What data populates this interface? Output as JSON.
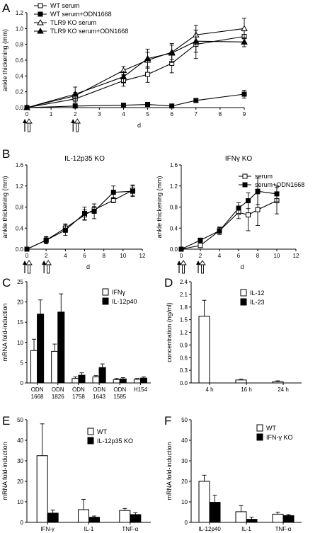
{
  "chart_data": [
    {
      "panel": "A",
      "type": "line",
      "title": "",
      "xlabel": "d",
      "ylabel": "ankle thickening (mm)",
      "xlim": [
        0,
        9
      ],
      "ylim": [
        0,
        1.2
      ],
      "xticks": [
        0,
        1,
        2,
        3,
        4,
        5,
        6,
        7,
        8,
        9
      ],
      "yticks": [
        0.0,
        0.2,
        0.4,
        0.6,
        0.8,
        1.0,
        1.2
      ],
      "injection_days": [
        0,
        2
      ],
      "series": [
        {
          "name": "WT serum",
          "marker": "open-square",
          "x": [
            0,
            2,
            4,
            5,
            6,
            7,
            9
          ],
          "y": [
            0,
            0.11,
            0.34,
            0.42,
            0.56,
            0.8,
            0.9
          ],
          "err": [
            0,
            0.05,
            0.07,
            0.1,
            0.12,
            0.18,
            0.07
          ]
        },
        {
          "name": "WT serum+ODN1668",
          "marker": "filled-square",
          "x": [
            0,
            2,
            4,
            5,
            6,
            7,
            9
          ],
          "y": [
            0,
            0.02,
            0.03,
            0.04,
            0.02,
            0.09,
            0.17
          ],
          "err": [
            0,
            0.01,
            0.01,
            0.01,
            0.01,
            0.01,
            0.05
          ]
        },
        {
          "name": "TLR9 KO serum",
          "marker": "open-triangle",
          "x": [
            0,
            2,
            4,
            5,
            6,
            7,
            9
          ],
          "y": [
            0,
            0.15,
            0.47,
            0.6,
            0.7,
            0.92,
            1.0
          ],
          "err": [
            0,
            0.04,
            0.05,
            0.1,
            0.09,
            0.12,
            0.13
          ]
        },
        {
          "name": "TLR9 KO serum+ODN1668",
          "marker": "filled-triangle",
          "x": [
            0,
            2,
            4,
            5,
            6,
            7,
            9
          ],
          "y": [
            0,
            0.17,
            0.39,
            0.62,
            0.69,
            0.84,
            0.83
          ],
          "err": [
            0,
            0.09,
            0.07,
            0.12,
            0.12,
            0.14,
            0.06
          ]
        }
      ]
    },
    {
      "panel": "B",
      "type": "line",
      "title": "IL-12p35 KO",
      "xlabel": "d",
      "ylabel": "ankle thickening (mm)",
      "xlim": [
        0,
        12
      ],
      "ylim": [
        0,
        1.6
      ],
      "xticks": [
        0,
        2,
        4,
        6,
        8,
        10,
        12
      ],
      "yticks": [
        0.0,
        0.4,
        0.8,
        1.2,
        1.6
      ],
      "injection_days": [
        0,
        2
      ],
      "series": [
        {
          "name": "serum",
          "marker": "open-square",
          "x": [
            0,
            2,
            4,
            6,
            7,
            9,
            11
          ],
          "y": [
            0,
            0.17,
            0.4,
            0.65,
            0.75,
            0.93,
            1.12
          ],
          "err": [
            0,
            0.06,
            0.08,
            0.1,
            0.06,
            0.05,
            0.1
          ]
        },
        {
          "name": "serum+ODN1668",
          "marker": "filled-square",
          "x": [
            0,
            2,
            4,
            6,
            7,
            9,
            11
          ],
          "y": [
            0,
            0.17,
            0.36,
            0.68,
            0.72,
            1.08,
            1.1
          ],
          "err": [
            0,
            0.07,
            0.1,
            0.12,
            0.14,
            0.12,
            0.1
          ]
        }
      ]
    },
    {
      "panel": "B",
      "type": "line",
      "title": "IFNγ KO",
      "xlabel": "d",
      "ylabel": "ankle thickening (mm)",
      "xlim": [
        0,
        12
      ],
      "ylim": [
        0,
        1.6
      ],
      "xticks": [
        0,
        2,
        4,
        6,
        8,
        10,
        12
      ],
      "yticks": [
        0.0,
        0.4,
        0.8,
        1.2,
        1.6
      ],
      "injection_days": [
        0,
        2
      ],
      "series": [
        {
          "name": "serum",
          "marker": "open-square",
          "x": [
            0,
            2,
            4,
            6,
            7,
            8,
            10
          ],
          "y": [
            0,
            0.07,
            0.35,
            0.7,
            0.65,
            0.75,
            0.92
          ],
          "err": [
            0,
            0.04,
            0.06,
            0.12,
            0.3,
            0.3,
            0.25
          ]
        },
        {
          "name": "serum+ODN1668",
          "marker": "filled-square",
          "x": [
            0,
            2,
            4,
            6,
            7,
            8,
            10
          ],
          "y": [
            0,
            0.17,
            0.35,
            0.78,
            0.92,
            1.1,
            1.05
          ],
          "err": [
            0,
            0.04,
            0.07,
            0.1,
            0.15,
            0.25,
            0.15
          ]
        }
      ]
    },
    {
      "panel": "C",
      "type": "bar",
      "title": "",
      "ylabel": "mRNA fold-induction",
      "ylim": [
        0,
        25
      ],
      "yticks": [
        0,
        5,
        10,
        15,
        20,
        25
      ],
      "categories": [
        "ODN\n1668",
        "ODN\n1826",
        "ODN\n1758",
        "ODN\n1643",
        "ODN\n1585",
        "H154"
      ],
      "series": [
        {
          "name": "IFNγ",
          "fill": "#ffffff",
          "values": [
            8.0,
            7.8,
            1.1,
            1.5,
            0.8,
            0.9
          ],
          "err": [
            2.8,
            1.8,
            0.4,
            0.3,
            0.3,
            0.2
          ]
        },
        {
          "name": "IL-12p40",
          "fill": "#000000",
          "values": [
            17.0,
            17.5,
            1.9,
            3.8,
            1.0,
            1.2
          ],
          "err": [
            3.5,
            4.5,
            0.6,
            0.9,
            0.3,
            0.3
          ]
        }
      ]
    },
    {
      "panel": "D",
      "type": "bar",
      "title": "",
      "ylabel": "concentration (ng/ml)",
      "ylim": [
        0,
        2.4
      ],
      "yticks": [
        0.0,
        0.3,
        0.6,
        0.9,
        1.2,
        1.5,
        1.8,
        2.1,
        2.4
      ],
      "categories": [
        "4 h",
        "16 h",
        "24 h"
      ],
      "series": [
        {
          "name": "IL-12",
          "fill": "#ffffff",
          "values": [
            1.58,
            0.07,
            0.03
          ],
          "err": [
            0.38,
            0.02,
            0.02
          ]
        },
        {
          "name": "IL-23",
          "fill": "#000000",
          "values": [
            0,
            0,
            0
          ],
          "err": [
            0,
            0,
            0
          ]
        }
      ]
    },
    {
      "panel": "E",
      "type": "bar",
      "title": "",
      "ylabel": "mRNA fold-induction",
      "ylim": [
        0,
        50
      ],
      "yticks": [
        0,
        10,
        20,
        30,
        40,
        50
      ],
      "categories": [
        "IFN-γ",
        "IL-1",
        "TNF-α"
      ],
      "series": [
        {
          "name": "WT",
          "fill": "#ffffff",
          "values": [
            32.5,
            6.2,
            5.8
          ],
          "err": [
            15.5,
            5.0,
            1.0
          ]
        },
        {
          "name": "IL-12p35 KO",
          "fill": "#000000",
          "values": [
            4.5,
            2.5,
            3.8
          ],
          "err": [
            1.5,
            0.6,
            0.9
          ]
        }
      ]
    },
    {
      "panel": "F",
      "type": "bar",
      "title": "",
      "ylabel": "mRNA fold-induction",
      "ylim": [
        0,
        50
      ],
      "yticks": [
        0,
        10,
        20,
        30,
        40,
        50
      ],
      "categories": [
        "IL-12p40",
        "IL-1",
        "TNF-α"
      ],
      "series": [
        {
          "name": "WT",
          "fill": "#ffffff",
          "values": [
            20.0,
            5.2,
            4.0
          ],
          "err": [
            3.0,
            3.0,
            1.0
          ]
        },
        {
          "name": "IFN-γ KO",
          "fill": "#000000",
          "values": [
            9.8,
            1.5,
            3.3
          ],
          "err": [
            3.5,
            1.0,
            0.5
          ]
        }
      ]
    }
  ]
}
